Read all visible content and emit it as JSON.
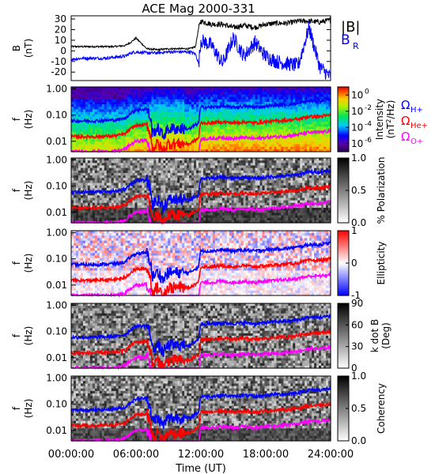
{
  "title": "ACE Mag 2000-331",
  "xlabel": "Time (UT)",
  "x_ticks": [
    "00:00:00",
    "06:00:00",
    "12:00:00",
    "18:00:00",
    "24:00:00"
  ],
  "freq_ticks": [
    "1.00",
    "0.10",
    "0.01"
  ],
  "freq_axis_label": [
    "f",
    "(Hz)"
  ],
  "colors": {
    "b_total": "#000000",
    "b_r": "#0000ff",
    "h_plus": "#0000ff",
    "he_plus": "#ff0000",
    "o_plus": "#ff00ff"
  },
  "legend": {
    "b_total": "|B|",
    "b_r": "B",
    "b_r_sub": "R",
    "omega": "Ω",
    "h_plus_sub": "H+",
    "he_plus_sub": "He+",
    "o_plus_sub": "O+"
  },
  "chart_data": [
    {
      "type": "line",
      "panel": "magnetic_field",
      "ylabel": [
        "B",
        "(nT)"
      ],
      "yticks": [
        "30",
        "20",
        "10",
        "0",
        "-10",
        "-20"
      ],
      "ylim": [
        -28,
        33
      ],
      "xlim": [
        0,
        24
      ],
      "series": [
        {
          "name": "|B|",
          "x": [
            0,
            1,
            2,
            3,
            4,
            5,
            5.5,
            6,
            7,
            8,
            9,
            10,
            11,
            11.5,
            11.8,
            12,
            13,
            14,
            15,
            16,
            17,
            18,
            19,
            20,
            21,
            22,
            23,
            24
          ],
          "y": [
            4,
            4,
            4,
            4,
            4,
            5,
            8,
            12,
            2,
            1,
            2,
            2,
            2,
            4,
            22,
            28,
            25,
            25,
            22,
            24,
            22,
            25,
            26,
            26,
            28,
            28,
            27,
            29
          ]
        },
        {
          "name": "B_R",
          "x": [
            0,
            1,
            2,
            3,
            4,
            5,
            5.5,
            6,
            7,
            8,
            9,
            10,
            11,
            11.5,
            11.8,
            12,
            13,
            14,
            15,
            16,
            17,
            18,
            19,
            20,
            21,
            22,
            23,
            24
          ],
          "y": [
            -8,
            -7,
            -7,
            -7,
            -6,
            -5,
            -2,
            -1,
            -2,
            -2,
            -1,
            -1,
            -1,
            -3,
            -12,
            10,
            5,
            -12,
            12,
            -5,
            8,
            -5,
            -10,
            -12,
            -14,
            22,
            -15,
            -25
          ]
        }
      ]
    },
    {
      "type": "heatmap",
      "panel": "intensity",
      "ylabel": [
        "f",
        "(Hz)"
      ],
      "colorbar_label": [
        "Intensity",
        "(nT",
        "2",
        "/Hz)"
      ],
      "colorbar_ticks": [
        "10",
        "10",
        "10",
        "10"
      ],
      "colorbar_exponents": [
        "0",
        "-2",
        "-4",
        "-6"
      ],
      "colorbar_range": [
        -7,
        1
      ],
      "colorscale": "rainbow"
    },
    {
      "type": "heatmap",
      "panel": "polarization",
      "ylabel": [
        "f",
        "(Hz)"
      ],
      "colorbar_label": "% Polarization",
      "colorbar_ticks": [
        "1.0",
        "0.5",
        "0.0"
      ],
      "colorbar_range": [
        0,
        1
      ],
      "colorscale": "grayscale"
    },
    {
      "type": "heatmap",
      "panel": "ellipticity",
      "ylabel": [
        "f",
        "(Hz)"
      ],
      "colorbar_label": "Ellipticity",
      "colorbar_ticks": [
        "1",
        "0",
        "-1"
      ],
      "colorbar_range": [
        -1,
        1
      ],
      "colorscale": "blue-white-red"
    },
    {
      "type": "heatmap",
      "panel": "k_dot_b",
      "ylabel": [
        "f",
        "(Hz)"
      ],
      "colorbar_label": [
        "k dot B",
        "(Deg)"
      ],
      "colorbar_ticks": [
        "90",
        "60",
        "30",
        "0"
      ],
      "colorbar_range": [
        0,
        90
      ],
      "colorscale": "grayscale"
    },
    {
      "type": "heatmap",
      "panel": "coherency",
      "ylabel": [
        "f",
        "(Hz)"
      ],
      "colorbar_label": "Coherency",
      "colorbar_ticks": [
        "1.0",
        "0.5",
        "0.0"
      ],
      "colorbar_range": [
        0,
        1
      ],
      "colorscale": "grayscale"
    }
  ],
  "gyrofrequency_lines": {
    "x": [
      0,
      2,
      4,
      5,
      6,
      7,
      7.5,
      8,
      8.5,
      9,
      10,
      11,
      11.8,
      12,
      13,
      14,
      15,
      16,
      17,
      18,
      19,
      20,
      21,
      22,
      23,
      24
    ],
    "h_plus_hz": [
      0.06,
      0.06,
      0.065,
      0.075,
      0.16,
      0.17,
      0.02,
      0.03,
      0.015,
      0.03,
      0.03,
      0.03,
      0.05,
      0.2,
      0.2,
      0.22,
      0.2,
      0.22,
      0.2,
      0.22,
      0.24,
      0.25,
      0.28,
      0.35,
      0.35,
      0.4
    ],
    "he_plus_hz": [
      0.015,
      0.015,
      0.016,
      0.019,
      0.04,
      0.043,
      0.005,
      0.008,
      0.004,
      0.008,
      0.008,
      0.008,
      0.013,
      0.05,
      0.05,
      0.055,
      0.05,
      0.055,
      0.05,
      0.055,
      0.06,
      0.063,
      0.07,
      0.088,
      0.088,
      0.1
    ],
    "o_plus_hz": [
      0.004,
      0.004,
      0.004,
      0.005,
      0.01,
      0.011,
      0.0013,
      0.002,
      0.001,
      0.002,
      0.002,
      0.002,
      0.003,
      0.0125,
      0.0125,
      0.014,
      0.0125,
      0.014,
      0.0125,
      0.014,
      0.015,
      0.016,
      0.018,
      0.022,
      0.022,
      0.025
    ]
  }
}
